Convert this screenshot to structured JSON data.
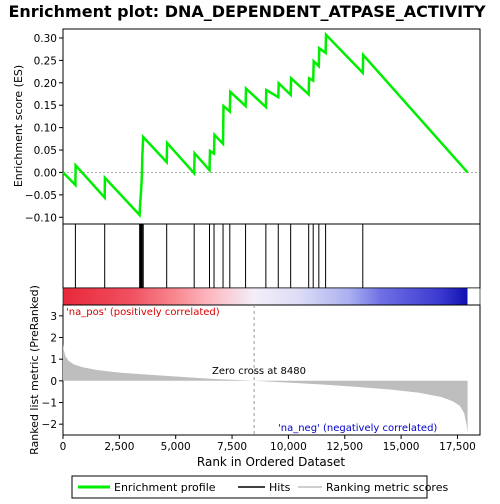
{
  "chart_data": {
    "type": "line",
    "title": "Enrichment plot: DNA_DEPENDENT_ATPASE_ACTIVITY",
    "xlabel": "Rank in Ordered Dataset",
    "xlim": [
      0,
      18500
    ],
    "x_ticks": [
      0,
      2500,
      5000,
      7500,
      10000,
      12500,
      15000,
      17500
    ],
    "x_tick_labels": [
      "0",
      "2,500",
      "5,000",
      "7,500",
      "10,000",
      "12,500",
      "15,000",
      "17,500"
    ],
    "top_panel": {
      "ylabel": "Enrichment score (ES)",
      "ylim": [
        -0.115,
        0.32
      ],
      "y_ticks": [
        -0.1,
        -0.05,
        0.0,
        0.05,
        0.1,
        0.15,
        0.2,
        0.25,
        0.3
      ],
      "y_tick_labels": [
        "−0.10",
        "−0.05",
        "0.00",
        "0.05",
        "0.10",
        "0.15",
        "0.20",
        "0.25",
        "0.30"
      ],
      "series": [
        {
          "name": "Enrichment profile",
          "color": "#00ee00",
          "x": [
            0,
            550,
            560,
            1850,
            1860,
            3400,
            3420,
            3450,
            3480,
            3500,
            3520,
            3560,
            4600,
            4620,
            5820,
            5840,
            6500,
            6520,
            6700,
            6720,
            7100,
            7120,
            7400,
            7420,
            8100,
            8120,
            9000,
            9020,
            9550,
            9570,
            10100,
            10120,
            10900,
            10920,
            11100,
            11120,
            11350,
            11370,
            11650,
            11670,
            13300,
            13320,
            17950
          ],
          "y": [
            0.0,
            -0.028,
            0.016,
            -0.056,
            -0.012,
            -0.095,
            -0.071,
            -0.05,
            -0.028,
            -0.007,
            0.035,
            0.079,
            0.023,
            0.066,
            -0.002,
            0.043,
            0.005,
            0.048,
            0.042,
            0.084,
            0.064,
            0.148,
            0.136,
            0.18,
            0.148,
            0.187,
            0.146,
            0.184,
            0.168,
            0.199,
            0.173,
            0.21,
            0.174,
            0.21,
            0.205,
            0.248,
            0.237,
            0.277,
            0.267,
            0.307,
            0.222,
            0.262,
            0.0
          ]
        }
      ]
    },
    "hits_panel": {
      "name": "Hits",
      "positions": [
        550,
        1850,
        3400,
        3420,
        3450,
        3480,
        3500,
        3520,
        3560,
        4600,
        5820,
        6500,
        6700,
        7100,
        7400,
        8100,
        9000,
        9550,
        10100,
        10900,
        11100,
        11350,
        11650,
        13300
      ]
    },
    "heat_bar": {
      "stops": [
        {
          "x": 0,
          "color": "#e8283a"
        },
        {
          "x": 3000,
          "color": "#f05060"
        },
        {
          "x": 5000,
          "color": "#f88890"
        },
        {
          "x": 6500,
          "color": "#fcb8c0"
        },
        {
          "x": 8480,
          "color": "#f4eef8"
        },
        {
          "x": 10500,
          "color": "#dcdcf6"
        },
        {
          "x": 12700,
          "color": "#aab0f0"
        },
        {
          "x": 14100,
          "color": "#7070e4"
        },
        {
          "x": 16800,
          "color": "#3838d0"
        },
        {
          "x": 17950,
          "color": "#1010b0"
        }
      ]
    },
    "ranked_panel": {
      "name": "Ranking metric scores",
      "ylabel": "Ranked list metric (PreRanked)",
      "ylim": [
        -2.5,
        3.5
      ],
      "y_ticks": [
        -2,
        -1,
        0,
        1,
        2,
        3
      ],
      "y_tick_labels": [
        "−2",
        "−1",
        "0",
        "1",
        "2",
        "3"
      ],
      "x": [
        0,
        30,
        100,
        250,
        500,
        900,
        1500,
        2500,
        3500,
        5000,
        6500,
        8480,
        10000,
        11500,
        13000,
        14500,
        15800,
        16800,
        17300,
        17600,
        17800,
        17900,
        17950
      ],
      "y": [
        1.7,
        1.45,
        1.15,
        0.92,
        0.75,
        0.62,
        0.5,
        0.38,
        0.3,
        0.2,
        0.1,
        0.0,
        -0.08,
        -0.17,
        -0.28,
        -0.4,
        -0.55,
        -0.75,
        -0.95,
        -1.15,
        -1.5,
        -2.0,
        -2.4
      ],
      "color": "#bebebe",
      "zero_cross": 8480,
      "zero_cross_label": "Zero cross at 8480",
      "pos_label": "'na_pos' (positively correlated)",
      "neg_label": "'na_neg' (negatively correlated)",
      "pos_color": "#dd0000",
      "neg_color": "#0000cc"
    },
    "legend": [
      {
        "name": "Enrichment profile",
        "color": "#00ee00"
      },
      {
        "name": "Hits",
        "color": "#000000"
      },
      {
        "name": "Ranking metric scores",
        "color": "#bebebe"
      }
    ]
  }
}
